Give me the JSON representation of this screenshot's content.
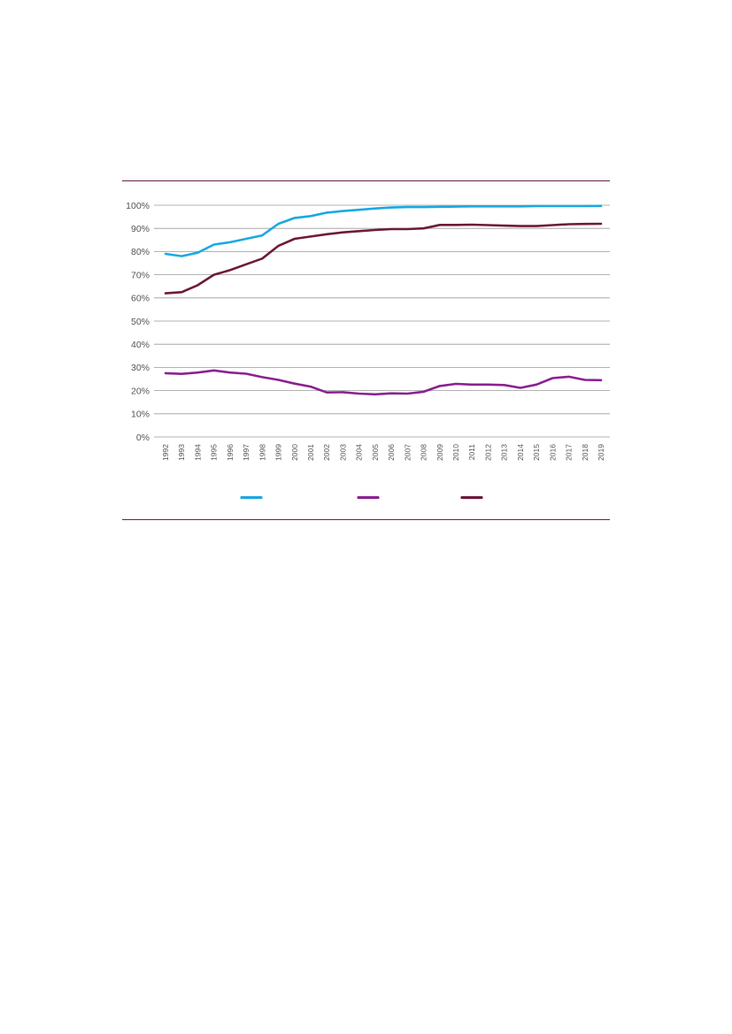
{
  "chart_data": {
    "type": "line",
    "title": "",
    "xlabel": "",
    "ylabel": "",
    "ylim": [
      0,
      100
    ],
    "y_ticks": [
      "0%",
      "10%",
      "20%",
      "30%",
      "40%",
      "50%",
      "60%",
      "70%",
      "80%",
      "90%",
      "100%"
    ],
    "y_tick_values": [
      0,
      10,
      20,
      30,
      40,
      50,
      60,
      70,
      80,
      90,
      100
    ],
    "categories": [
      "1992",
      "1993",
      "1994",
      "1995",
      "1996",
      "1997",
      "1998",
      "1999",
      "2000",
      "2001",
      "2002",
      "2003",
      "2004",
      "2005",
      "2006",
      "2007",
      "2008",
      "2009",
      "2010",
      "2011",
      "2012",
      "2013",
      "2014",
      "2015",
      "2016",
      "2017",
      "2018",
      "2019"
    ],
    "grid": true,
    "legend_placement": "bottom",
    "series": [
      {
        "color": "#1ba9e1",
        "values": [
          79,
          78,
          79.5,
          83,
          84,
          85.5,
          87,
          92,
          94.5,
          95.3,
          96.8,
          97.5,
          98,
          98.6,
          99,
          99.2,
          99.2,
          99.3,
          99.4,
          99.5,
          99.5,
          99.5,
          99.5,
          99.6,
          99.6,
          99.6,
          99.6,
          99.7
        ]
      },
      {
        "color": "#8b2291",
        "values": [
          27.5,
          27.2,
          27.8,
          28.7,
          27.8,
          27.3,
          25.8,
          24.6,
          23,
          21.7,
          19.2,
          19.3,
          18.7,
          18.4,
          18.8,
          18.7,
          19.5,
          22,
          22.9,
          22.6,
          22.6,
          22.4,
          21.2,
          22.6,
          25.4,
          26,
          24.6,
          24.5
        ]
      },
      {
        "color": "#6e1a3b",
        "values": [
          62,
          62.5,
          65.5,
          70,
          72,
          74.5,
          77,
          82.5,
          85.5,
          86.5,
          87.5,
          88.3,
          88.8,
          89.3,
          89.7,
          89.7,
          90,
          91.5,
          91.5,
          91.6,
          91.4,
          91.2,
          91,
          91,
          91.4,
          91.8,
          91.9,
          92
        ]
      }
    ]
  }
}
